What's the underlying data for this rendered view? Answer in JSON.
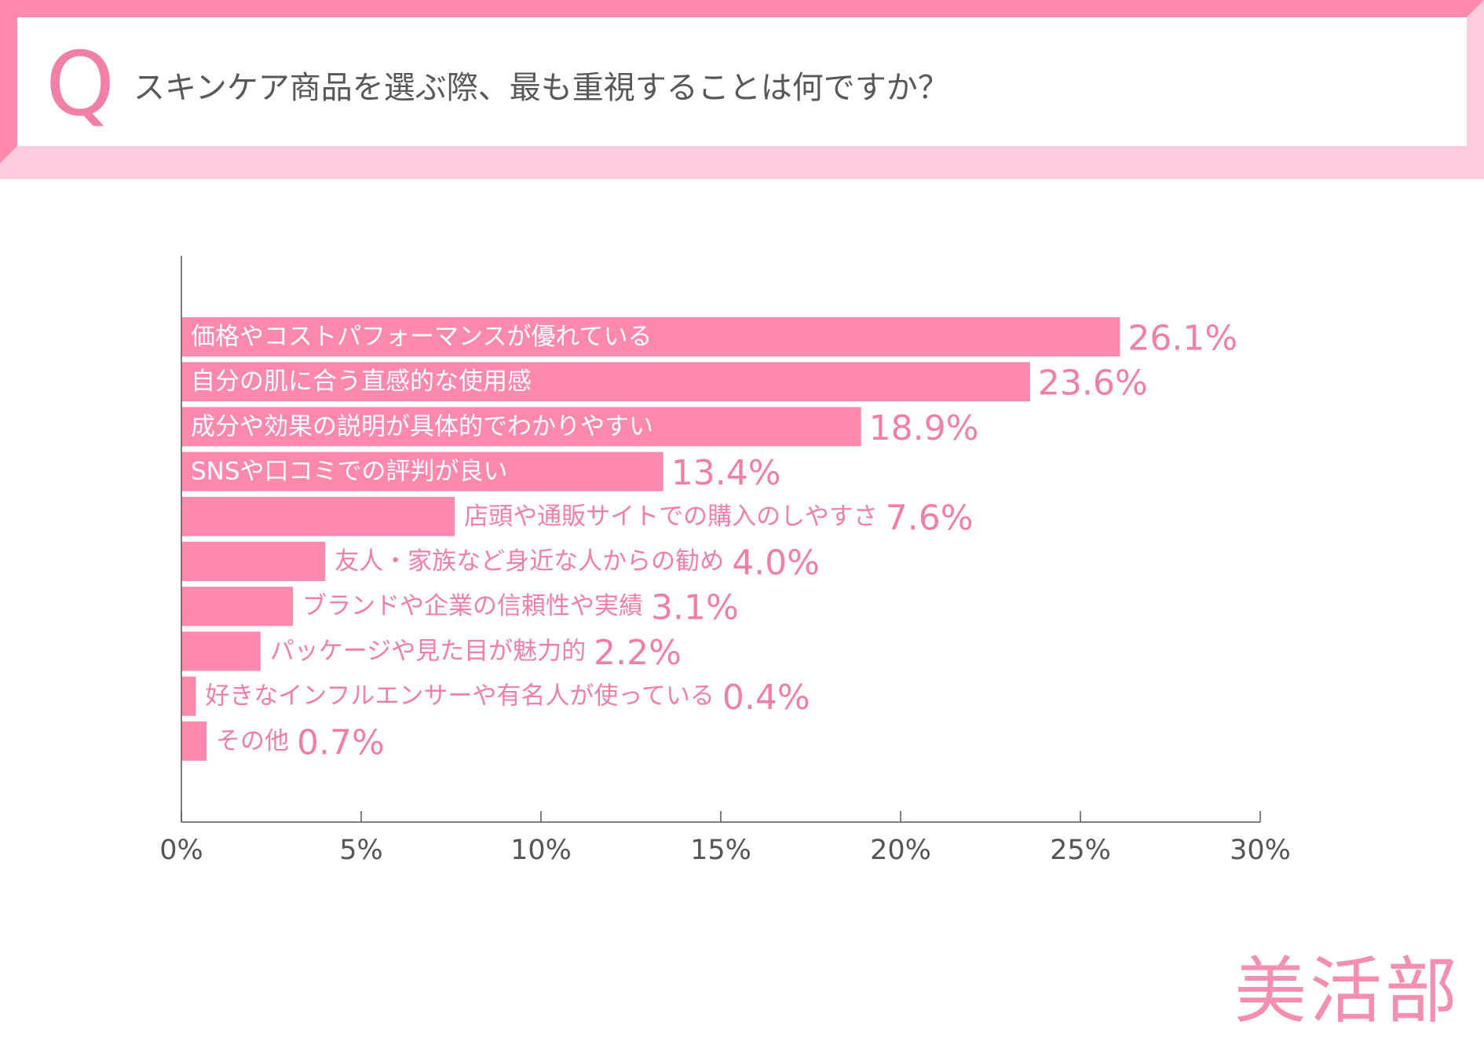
{
  "question": {
    "marker": "Q",
    "text": "スキンケア商品を選ぶ際、最も重視することは何ですか？"
  },
  "colors": {
    "bar": "#ff88ad",
    "frame_outer": "#ff88ad",
    "frame_inner": "#ffcbdd",
    "label_on_bar": "#ffffff",
    "label_off_bar": "#f17fa7",
    "value": "#f17fa7",
    "axis": "#555555",
    "tick_text": "#555555"
  },
  "brand": "美活部",
  "chart_data": {
    "type": "bar",
    "orientation": "horizontal",
    "title": "スキンケア商品を選ぶ際、最も重視することは何ですか？",
    "xlabel": "",
    "ylabel": "",
    "xlim": [
      0,
      30
    ],
    "x_ticks": [
      0,
      5,
      10,
      15,
      20,
      25,
      30
    ],
    "x_tick_labels": [
      "0%",
      "5%",
      "10%",
      "15%",
      "20%",
      "25%",
      "30%"
    ],
    "grid": false,
    "categories": [
      "価格やコストパフォーマンスが優れている",
      "自分の肌に合う直感的な使用感",
      "成分や効果の説明が具体的でわかりやすい",
      "SNSや口コミでの評判が良い",
      "店頭や通販サイトでの購入のしやすさ",
      "友人・家族など身近な人からの勧め",
      "ブランドや企業の信頼性や実績",
      "パッケージや見た目が魅力的",
      "好きなインフルエンサーや有名人が使っている",
      "その他"
    ],
    "values": [
      26.1,
      23.6,
      18.9,
      13.4,
      7.6,
      4.0,
      3.1,
      2.2,
      0.4,
      0.7
    ],
    "value_labels": [
      "26.1%",
      "23.6%",
      "18.9%",
      "13.4%",
      "7.6%",
      "4.0%",
      "3.1%",
      "2.2%",
      "0.4%",
      "0.7%"
    ]
  }
}
